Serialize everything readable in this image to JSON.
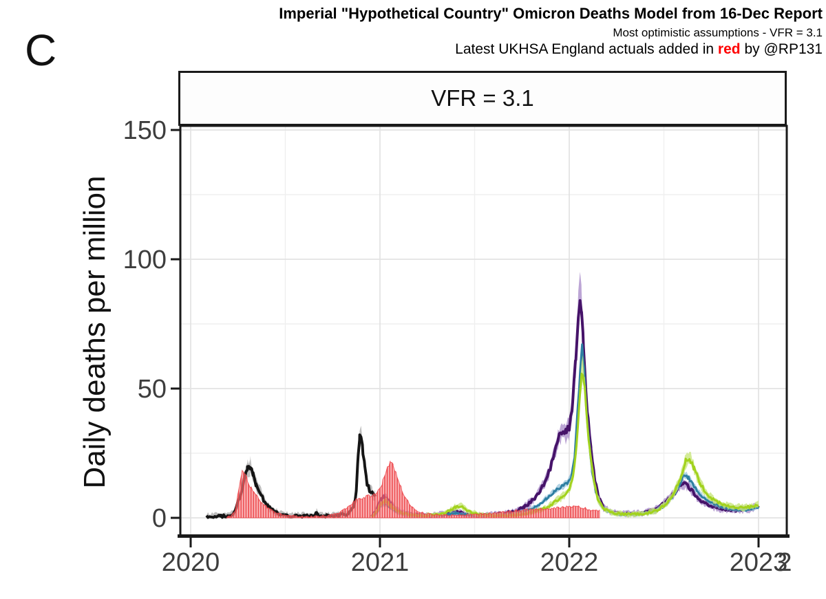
{
  "page": {
    "panel_letter": "C"
  },
  "header": {
    "title": "Imperial \"Hypothetical Country\" Omicron Deaths Model from 16-Dec Report",
    "subtitle1": "Most optimistic assumptions - VFR = 3.1",
    "subtitle2_prefix": "Latest UKHSA England actuals added in ",
    "subtitle2_red_word": "red",
    "subtitle2_suffix": " by @RP131",
    "red_color": "#ff0000"
  },
  "facet": {
    "label": "VFR = 3.1"
  },
  "chart_data": {
    "type": "line",
    "title": "VFR = 3.1",
    "xlabel": "",
    "ylabel": "Daily deaths per million",
    "unit": "daily deaths per million",
    "x_domain": [
      2019.945,
      2023.145
    ],
    "y_domain": [
      0,
      151.5
    ],
    "grid": true,
    "legend": "none",
    "x_ticks": [
      {
        "value": 2020,
        "label": "2020"
      },
      {
        "value": 2021,
        "label": "2021"
      },
      {
        "value": 2022,
        "label": "2022"
      },
      {
        "value": 2023,
        "label": "2023"
      }
    ],
    "x_extra_label": {
      "value": 2023.138,
      "label": "2"
    },
    "x_minor": [
      2020.5,
      2021.5,
      2022.5
    ],
    "y_ticks": [
      {
        "value": 0,
        "label": "0"
      },
      {
        "value": 50,
        "label": "50"
      },
      {
        "value": 100,
        "label": "100"
      },
      {
        "value": 150,
        "label": "150"
      }
    ],
    "y_minor": [
      25,
      75,
      125
    ],
    "colors": {
      "black_line": "#151515",
      "black_band": "rgba(125,125,125,0.5)",
      "purple_line": "#461369",
      "purple_band": "rgba(171,142,202,0.8)",
      "teal_line": "#2e7fa2",
      "teal_band": "rgba(126,182,212,0.6)",
      "green_line": "#a2d21d",
      "green_band": "rgba(200,230,125,0.8)",
      "red_dark": "rgba(236,62,68,0.8)",
      "red_light": "rgba(249,153,155,0.55)",
      "grid_major": "#e3e3e3",
      "grid_minor": "#efefef",
      "axis": "#1a1a1a",
      "tick_text": "#3d3d3d"
    },
    "series": [
      {
        "name": "model-2020-fit-black",
        "style": "line",
        "color_key": "black_line",
        "band_key": "black_band",
        "band_base": 1.6,
        "band_factor": 0.13,
        "line_width": 4,
        "points": [
          [
            2020.084,
            0.5
          ],
          [
            2020.16,
            0.6
          ],
          [
            2020.21,
            0.9
          ],
          [
            2020.235,
            2.5
          ],
          [
            2020.26,
            8
          ],
          [
            2020.285,
            15
          ],
          [
            2020.3,
            19
          ],
          [
            2020.315,
            20
          ],
          [
            2020.33,
            16.5
          ],
          [
            2020.345,
            13
          ],
          [
            2020.365,
            10.5
          ],
          [
            2020.385,
            7
          ],
          [
            2020.41,
            4.5
          ],
          [
            2020.44,
            2.5
          ],
          [
            2020.48,
            1.2
          ],
          [
            2020.53,
            0.8
          ],
          [
            2020.6,
            0.7
          ],
          [
            2020.655,
            0.8
          ],
          [
            2020.665,
            2.2
          ],
          [
            2020.675,
            0.9
          ],
          [
            2020.72,
            0.8
          ],
          [
            2020.78,
            1.0
          ],
          [
            2020.825,
            1.5
          ],
          [
            2020.845,
            2.5
          ],
          [
            2020.862,
            5
          ],
          [
            2020.875,
            10
          ],
          [
            2020.885,
            24
          ],
          [
            2020.893,
            31
          ],
          [
            2020.9,
            32.5
          ],
          [
            2020.91,
            26
          ],
          [
            2020.92,
            19
          ],
          [
            2020.932,
            13.5
          ],
          [
            2020.945,
            10.8
          ],
          [
            2020.96,
            9.2
          ],
          [
            2020.975,
            8.2
          ]
        ]
      },
      {
        "name": "model-omicron-purple",
        "style": "line",
        "color_key": "purple_line",
        "band_key": "purple_band",
        "band_base": 1.4,
        "band_factor": 0.11,
        "line_width": 4,
        "points": [
          [
            2020.955,
            0.4
          ],
          [
            2020.975,
            2
          ],
          [
            2021.0,
            6
          ],
          [
            2021.02,
            8.5
          ],
          [
            2021.045,
            6.5
          ],
          [
            2021.08,
            3.5
          ],
          [
            2021.12,
            1.8
          ],
          [
            2021.18,
            1
          ],
          [
            2021.27,
            0.8
          ],
          [
            2021.35,
            1.6
          ],
          [
            2021.4,
            2.4
          ],
          [
            2021.46,
            1.4
          ],
          [
            2021.54,
            1
          ],
          [
            2021.62,
            1.3
          ],
          [
            2021.7,
            2.2
          ],
          [
            2021.76,
            4
          ],
          [
            2021.81,
            7
          ],
          [
            2021.85,
            11
          ],
          [
            2021.885,
            16
          ],
          [
            2021.915,
            23
          ],
          [
            2021.94,
            30
          ],
          [
            2021.96,
            33.5
          ],
          [
            2021.985,
            33
          ],
          [
            2022.0,
            35
          ],
          [
            2022.018,
            44
          ],
          [
            2022.035,
            62
          ],
          [
            2022.048,
            78
          ],
          [
            2022.057,
            87
          ],
          [
            2022.065,
            80
          ],
          [
            2022.075,
            66
          ],
          [
            2022.088,
            50
          ],
          [
            2022.1,
            37
          ],
          [
            2022.115,
            26
          ],
          [
            2022.135,
            15
          ],
          [
            2022.155,
            8
          ],
          [
            2022.18,
            4
          ],
          [
            2022.22,
            2.2
          ],
          [
            2022.3,
            1.6
          ],
          [
            2022.38,
            1.8
          ],
          [
            2022.45,
            3
          ],
          [
            2022.51,
            6
          ],
          [
            2022.55,
            9
          ],
          [
            2022.575,
            12
          ],
          [
            2022.6,
            13.5
          ],
          [
            2022.625,
            12.5
          ],
          [
            2022.66,
            9.5
          ],
          [
            2022.7,
            6.5
          ],
          [
            2022.75,
            4.5
          ],
          [
            2022.81,
            3.4
          ],
          [
            2022.88,
            3.0
          ],
          [
            2022.95,
            3.4
          ],
          [
            2023.0,
            4.5
          ]
        ]
      },
      {
        "name": "model-omicron-teal",
        "style": "line",
        "color_key": "teal_line",
        "band_key": "teal_band",
        "band_base": 1.0,
        "band_factor": 0.07,
        "line_width": 3,
        "points": [
          [
            2020.955,
            0.3
          ],
          [
            2020.98,
            1.8
          ],
          [
            2021.005,
            4.5
          ],
          [
            2021.03,
            5.5
          ],
          [
            2021.06,
            3.8
          ],
          [
            2021.1,
            2
          ],
          [
            2021.16,
            1
          ],
          [
            2021.25,
            0.7
          ],
          [
            2021.34,
            1.2
          ],
          [
            2021.4,
            1.8
          ],
          [
            2021.46,
            1.1
          ],
          [
            2021.56,
            0.8
          ],
          [
            2021.66,
            1.1
          ],
          [
            2021.73,
            1.8
          ],
          [
            2021.79,
            3
          ],
          [
            2021.84,
            5
          ],
          [
            2021.88,
            7.5
          ],
          [
            2021.92,
            10
          ],
          [
            2021.955,
            12
          ],
          [
            2021.99,
            13.5
          ],
          [
            2022.01,
            16
          ],
          [
            2022.028,
            24
          ],
          [
            2022.045,
            42
          ],
          [
            2022.058,
            58
          ],
          [
            2022.068,
            66
          ],
          [
            2022.078,
            57
          ],
          [
            2022.09,
            43
          ],
          [
            2022.105,
            29
          ],
          [
            2022.12,
            18
          ],
          [
            2022.14,
            10
          ],
          [
            2022.165,
            5
          ],
          [
            2022.2,
            2.5
          ],
          [
            2022.27,
            1.3
          ],
          [
            2022.36,
            1.3
          ],
          [
            2022.44,
            2.2
          ],
          [
            2022.5,
            4.5
          ],
          [
            2022.545,
            8
          ],
          [
            2022.58,
            12.5
          ],
          [
            2022.605,
            16.5
          ],
          [
            2022.63,
            15.5
          ],
          [
            2022.66,
            12
          ],
          [
            2022.7,
            8.5
          ],
          [
            2022.745,
            6
          ],
          [
            2022.8,
            4.4
          ],
          [
            2022.87,
            3.3
          ],
          [
            2022.94,
            3.1
          ],
          [
            2023.0,
            4.2
          ]
        ]
      },
      {
        "name": "model-omicron-green",
        "style": "line",
        "color_key": "green_line",
        "band_key": "green_band",
        "band_base": 1.2,
        "band_factor": 0.1,
        "line_width": 3,
        "points": [
          [
            2020.955,
            0.4
          ],
          [
            2020.98,
            2.2
          ],
          [
            2021.005,
            5.5
          ],
          [
            2021.03,
            6.5
          ],
          [
            2021.06,
            4.5
          ],
          [
            2021.1,
            2.3
          ],
          [
            2021.15,
            1.2
          ],
          [
            2021.23,
            0.8
          ],
          [
            2021.31,
            1.2
          ],
          [
            2021.36,
            2.6
          ],
          [
            2021.4,
            4.2
          ],
          [
            2021.435,
            4.4
          ],
          [
            2021.47,
            2.4
          ],
          [
            2021.53,
            1.1
          ],
          [
            2021.61,
            0.8
          ],
          [
            2021.7,
            1.0
          ],
          [
            2021.77,
            1.6
          ],
          [
            2021.83,
            2.6
          ],
          [
            2021.88,
            4
          ],
          [
            2021.92,
            5.8
          ],
          [
            2021.96,
            8
          ],
          [
            2022.0,
            11
          ],
          [
            2022.02,
            16
          ],
          [
            2022.038,
            28
          ],
          [
            2022.052,
            44
          ],
          [
            2022.065,
            55
          ],
          [
            2022.072,
            57
          ],
          [
            2022.082,
            49
          ],
          [
            2022.095,
            37
          ],
          [
            2022.11,
            25
          ],
          [
            2022.13,
            14
          ],
          [
            2022.15,
            7.5
          ],
          [
            2022.18,
            3.5
          ],
          [
            2022.23,
            1.8
          ],
          [
            2022.31,
            1.3
          ],
          [
            2022.4,
            1.6
          ],
          [
            2022.47,
            3
          ],
          [
            2022.52,
            6
          ],
          [
            2022.56,
            10.5
          ],
          [
            2022.59,
            16
          ],
          [
            2022.615,
            22
          ],
          [
            2022.635,
            23.5
          ],
          [
            2022.66,
            19
          ],
          [
            2022.69,
            13.5
          ],
          [
            2022.725,
            9.5
          ],
          [
            2022.765,
            6.8
          ],
          [
            2022.81,
            5.2
          ],
          [
            2022.87,
            4.2
          ],
          [
            2022.93,
            4.0
          ],
          [
            2022.97,
            4.4
          ],
          [
            2023.0,
            5.2
          ]
        ]
      },
      {
        "name": "ukhsa-england-actuals-red",
        "style": "bars",
        "band_base": 0.3,
        "band_factor": 0.04,
        "line_width": 1,
        "points": [
          [
            2020.19,
            0.2
          ],
          [
            2020.215,
            0.8
          ],
          [
            2020.235,
            3
          ],
          [
            2020.25,
            9
          ],
          [
            2020.262,
            15
          ],
          [
            2020.272,
            18.3
          ],
          [
            2020.282,
            17.5
          ],
          [
            2020.3,
            14.5
          ],
          [
            2020.32,
            11.5
          ],
          [
            2020.345,
            8.8
          ],
          [
            2020.375,
            6
          ],
          [
            2020.41,
            3.8
          ],
          [
            2020.45,
            2
          ],
          [
            2020.5,
            1
          ],
          [
            2020.56,
            0.6
          ],
          [
            2020.63,
            0.5
          ],
          [
            2020.7,
            0.7
          ],
          [
            2020.75,
            1.2
          ],
          [
            2020.79,
            2.2
          ],
          [
            2020.83,
            4
          ],
          [
            2020.86,
            6
          ],
          [
            2020.885,
            7.5
          ],
          [
            2020.92,
            8
          ],
          [
            2020.96,
            8.6
          ],
          [
            2020.99,
            10.5
          ],
          [
            2021.015,
            14
          ],
          [
            2021.04,
            19
          ],
          [
            2021.055,
            21.5
          ],
          [
            2021.07,
            20.5
          ],
          [
            2021.09,
            16.5
          ],
          [
            2021.115,
            11
          ],
          [
            2021.14,
            7
          ],
          [
            2021.17,
            4
          ],
          [
            2021.21,
            2.2
          ],
          [
            2021.26,
            1.4
          ],
          [
            2021.33,
            1.1
          ],
          [
            2021.42,
            1.1
          ],
          [
            2021.52,
            1.4
          ],
          [
            2021.62,
            2.0
          ],
          [
            2021.72,
            2.8
          ],
          [
            2021.82,
            3.3
          ],
          [
            2021.92,
            3.8
          ],
          [
            2022.0,
            4.2
          ],
          [
            2022.035,
            4.6
          ],
          [
            2022.07,
            4.0
          ],
          [
            2022.11,
            3.2
          ],
          [
            2022.145,
            2.8
          ],
          [
            2022.16,
            2.6
          ]
        ]
      }
    ]
  }
}
